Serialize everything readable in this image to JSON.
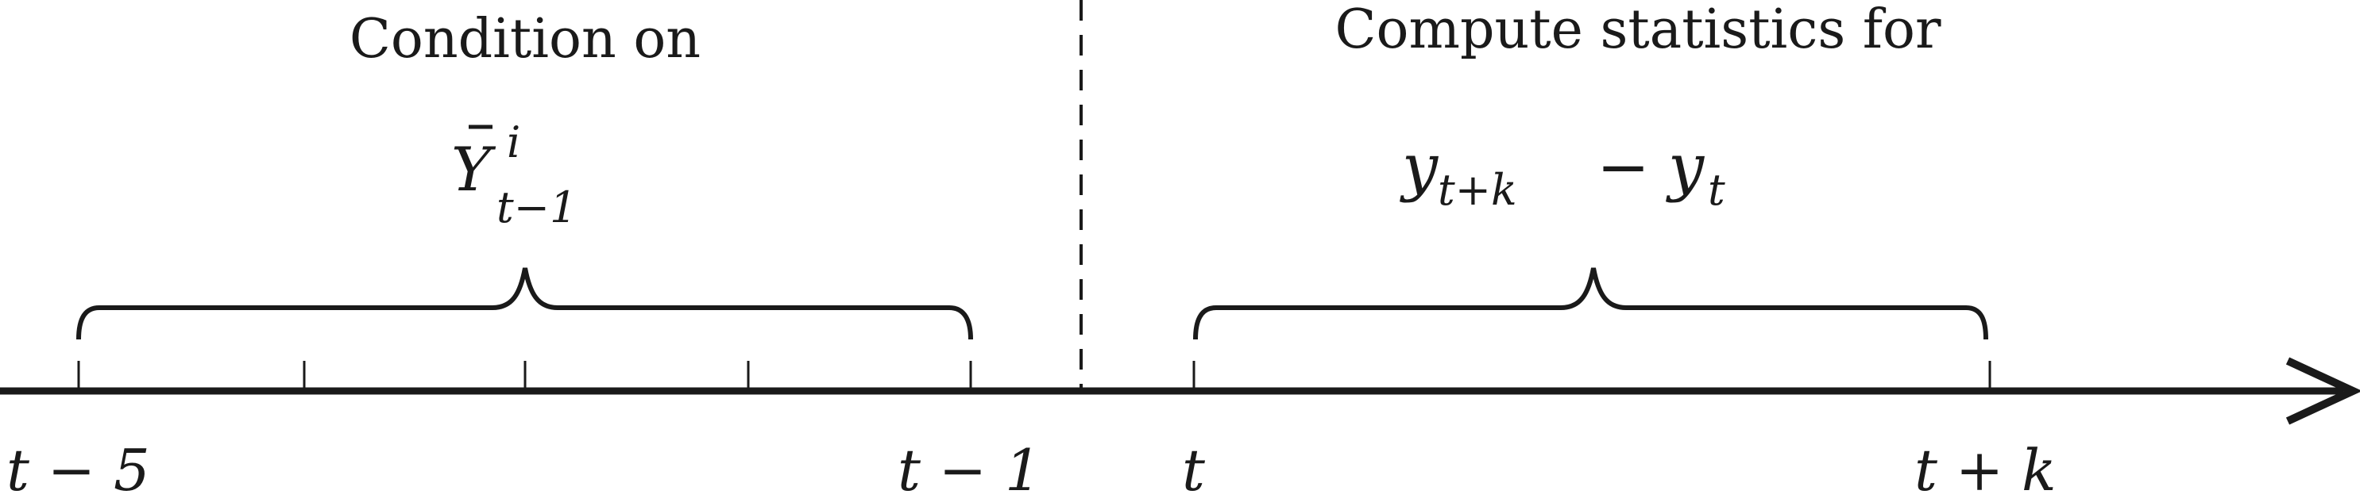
{
  "left_section": {
    "heading": "Condition on",
    "math": {
      "base": "Y",
      "accent": "bar",
      "superscript": "i",
      "subscript": "t−1"
    }
  },
  "right_section": {
    "heading": "Compute statistics for",
    "math": {
      "term1": "y",
      "term1_sub": "t+k",
      "operator": "−",
      "term2": "y",
      "term2_sub": "t"
    }
  },
  "axis_labels": {
    "t_minus_5": "t − 5",
    "t_minus_1": "t − 1",
    "t": "t",
    "t_plus_k": "t + k"
  },
  "colors": {
    "ink": "#1a1a1a",
    "background": "#ffffff"
  }
}
